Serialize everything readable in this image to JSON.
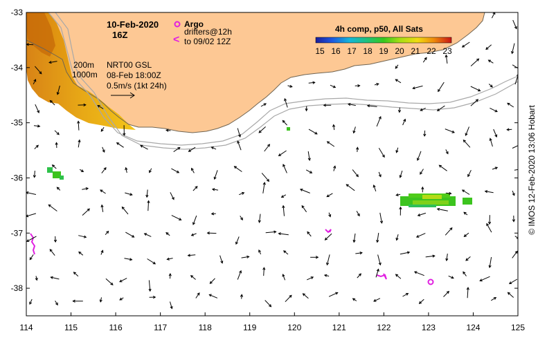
{
  "map": {
    "date_label": "10-Feb-2020",
    "time_label": "16Z",
    "legend": {
      "argo_label": "Argo",
      "drifter_line1": "drifters@12h",
      "drifter_line2": "to 09/02 12Z",
      "argo_symbol_color": "#e020e0",
      "drifter_symbol": "<"
    },
    "isobaths": [
      "200m",
      "1000m"
    ],
    "analysis": {
      "line1": "NRT00 GSL",
      "line2": "08-Feb 18:00Z",
      "scale_label": "0.5m/s (1kt 24h)"
    },
    "colorbar": {
      "title": "4h comp, p50, All Sats",
      "ticks": [
        "15",
        "16",
        "17",
        "18",
        "19",
        "20",
        "21",
        "22",
        "23"
      ],
      "min": 15,
      "max": 23
    },
    "axes": {
      "lon_min": 114,
      "lon_max": 125,
      "lat_min": -38.5,
      "lat_max": -33,
      "x_ticks": [
        114,
        115,
        116,
        117,
        118,
        119,
        120,
        121,
        122,
        123,
        124,
        125
      ],
      "y_ticks": [
        -33,
        -34,
        -35,
        -36,
        -37,
        -38
      ]
    },
    "credit": "© IMOS 12-Feb-2020 13:06 Hobart",
    "colors": {
      "land": "#fdc894",
      "coast": "#8a7a60",
      "isobath": "#a8a8a8",
      "argo": "#e020e0",
      "drifter": "#e020e0",
      "arrow": "#000000"
    }
  }
}
